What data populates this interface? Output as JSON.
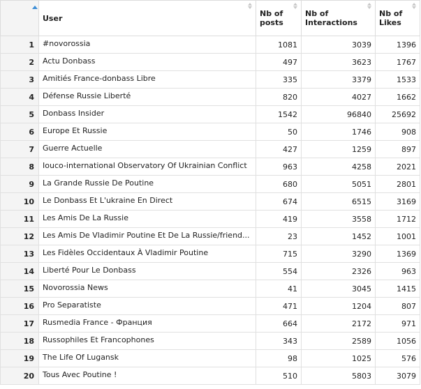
{
  "table": {
    "columns": {
      "user": "User",
      "posts": "Nb of posts",
      "interactions": "Nb of Interactions",
      "likes": "Nb of Likes"
    },
    "rows": [
      {
        "n": "1",
        "user": "#novorossia",
        "posts": "1081",
        "interactions": "3039",
        "likes": "1396"
      },
      {
        "n": "2",
        "user": "Actu Donbass",
        "posts": "497",
        "interactions": "3623",
        "likes": "1767"
      },
      {
        "n": "3",
        "user": "Amitiés France-donbass Libre",
        "posts": "335",
        "interactions": "3379",
        "likes": "1533"
      },
      {
        "n": "4",
        "user": "Défense Russie Liberté",
        "posts": "820",
        "interactions": "4027",
        "likes": "1662"
      },
      {
        "n": "5",
        "user": "Donbass Insider",
        "posts": "1542",
        "interactions": "96840",
        "likes": "25692"
      },
      {
        "n": "6",
        "user": "Europe Et Russie",
        "posts": "50",
        "interactions": "1746",
        "likes": "908"
      },
      {
        "n": "7",
        "user": "Guerre Actuelle",
        "posts": "427",
        "interactions": "1259",
        "likes": "897"
      },
      {
        "n": "8",
        "user": "Iouco-international Observatory Of Ukrainian Conflict",
        "posts": "963",
        "interactions": "4258",
        "likes": "2021"
      },
      {
        "n": "9",
        "user": "La Grande Russie De Poutine",
        "posts": "680",
        "interactions": "5051",
        "likes": "2801"
      },
      {
        "n": "10",
        "user": "Le Donbass Et L'ukraine En Direct",
        "posts": "674",
        "interactions": "6515",
        "likes": "3169"
      },
      {
        "n": "11",
        "user": "Les Amis De La Russie",
        "posts": "419",
        "interactions": "3558",
        "likes": "1712"
      },
      {
        "n": "12",
        "user": "Les Amis De Vladimir Poutine Et De La Russie/friend...",
        "posts": "23",
        "interactions": "1452",
        "likes": "1001"
      },
      {
        "n": "13",
        "user": "Les Fidèles Occidentaux À Vladimir Poutine",
        "posts": "715",
        "interactions": "3290",
        "likes": "1369"
      },
      {
        "n": "14",
        "user": "Liberté Pour Le Donbass",
        "posts": "554",
        "interactions": "2326",
        "likes": "963"
      },
      {
        "n": "15",
        "user": "Novorossia News",
        "posts": "41",
        "interactions": "3045",
        "likes": "1415"
      },
      {
        "n": "16",
        "user": "Pro Separatiste",
        "posts": "471",
        "interactions": "1204",
        "likes": "807"
      },
      {
        "n": "17",
        "user": "Rusmedia France - Франция",
        "posts": "664",
        "interactions": "2172",
        "likes": "971"
      },
      {
        "n": "18",
        "user": "Russophiles Et Francophones",
        "posts": "343",
        "interactions": "2589",
        "likes": "1056"
      },
      {
        "n": "19",
        "user": "The Life Of Lugansk",
        "posts": "98",
        "interactions": "1025",
        "likes": "576"
      },
      {
        "n": "20",
        "user": "Tous Avec Poutine !",
        "posts": "510",
        "interactions": "5803",
        "likes": "3079"
      }
    ]
  }
}
